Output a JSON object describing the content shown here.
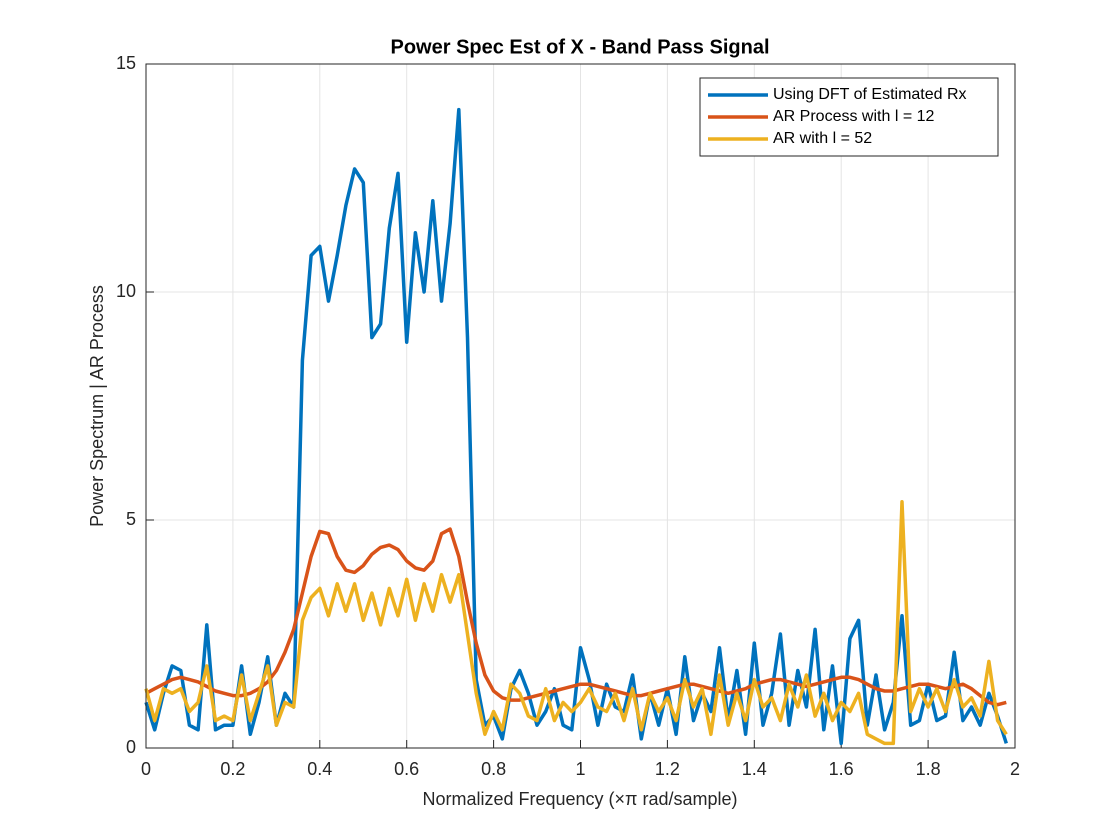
{
  "chart_data": {
    "type": "line",
    "title": "Power Spec Est of X -  Band Pass Signal",
    "x_label": "Normalized Frequency (×π rad/sample)",
    "y_label": "Power Spectrum | AR Process",
    "x": [
      0,
      0.02,
      0.04,
      0.06,
      0.08,
      0.1,
      0.12,
      0.14,
      0.16,
      0.18,
      0.2,
      0.22,
      0.24,
      0.26,
      0.28,
      0.3,
      0.32,
      0.34,
      0.36,
      0.38,
      0.4,
      0.42,
      0.44,
      0.46,
      0.48,
      0.5,
      0.52,
      0.54,
      0.56,
      0.58,
      0.6,
      0.62,
      0.64,
      0.66,
      0.68,
      0.7,
      0.72,
      0.74,
      0.76,
      0.78,
      0.8,
      0.82,
      0.84,
      0.86,
      0.88,
      0.9,
      0.92,
      0.94,
      0.96,
      0.98,
      1.0,
      1.02,
      1.04,
      1.06,
      1.08,
      1.1,
      1.12,
      1.14,
      1.16,
      1.18,
      1.2,
      1.22,
      1.24,
      1.26,
      1.28,
      1.3,
      1.32,
      1.34,
      1.36,
      1.38,
      1.4,
      1.42,
      1.44,
      1.46,
      1.48,
      1.5,
      1.52,
      1.54,
      1.56,
      1.58,
      1.6,
      1.62,
      1.64,
      1.66,
      1.68,
      1.7,
      1.72,
      1.74,
      1.76,
      1.78,
      1.8,
      1.82,
      1.84,
      1.86,
      1.88,
      1.9,
      1.92,
      1.94,
      1.96,
      1.98
    ],
    "series": [
      {
        "name": "Using DFT of Estimated Rx",
        "color": "#0072BD",
        "values": [
          1.0,
          0.4,
          1.2,
          1.8,
          1.7,
          0.5,
          0.4,
          2.7,
          0.4,
          0.5,
          0.5,
          1.8,
          0.3,
          1.0,
          2.0,
          0.5,
          1.2,
          0.9,
          8.5,
          10.8,
          11.0,
          9.8,
          10.8,
          11.9,
          12.7,
          12.4,
          9.0,
          9.3,
          11.4,
          12.6,
          8.9,
          11.3,
          10.0,
          12.0,
          9.8,
          11.5,
          14.0,
          9.0,
          1.5,
          0.5,
          0.7,
          0.2,
          1.3,
          1.7,
          1.2,
          0.5,
          0.8,
          1.3,
          0.5,
          0.4,
          2.2,
          1.5,
          0.5,
          1.4,
          0.9,
          0.8,
          1.6,
          0.2,
          1.2,
          0.5,
          1.3,
          0.3,
          2.0,
          0.6,
          1.2,
          0.8,
          2.2,
          0.6,
          1.7,
          0.3,
          2.3,
          0.5,
          1.2,
          2.5,
          0.5,
          1.7,
          0.9,
          2.6,
          0.4,
          1.8,
          0.1,
          2.4,
          2.8,
          0.5,
          1.6,
          0.4,
          1.0,
          2.9,
          0.5,
          0.6,
          1.4,
          0.6,
          0.7,
          2.1,
          0.6,
          0.9,
          0.5,
          1.2,
          0.7,
          0.1
        ]
      },
      {
        "name": "AR Process with l = 12",
        "color": "#D95319",
        "values": [
          1.2,
          1.3,
          1.4,
          1.5,
          1.55,
          1.5,
          1.45,
          1.35,
          1.25,
          1.2,
          1.15,
          1.15,
          1.2,
          1.3,
          1.45,
          1.7,
          2.1,
          2.6,
          3.4,
          4.2,
          4.75,
          4.7,
          4.2,
          3.9,
          3.85,
          4.0,
          4.25,
          4.4,
          4.45,
          4.35,
          4.1,
          3.95,
          3.9,
          4.1,
          4.7,
          4.8,
          4.2,
          3.2,
          2.3,
          1.6,
          1.25,
          1.1,
          1.05,
          1.05,
          1.1,
          1.15,
          1.2,
          1.25,
          1.3,
          1.35,
          1.4,
          1.4,
          1.35,
          1.3,
          1.25,
          1.2,
          1.15,
          1.15,
          1.2,
          1.25,
          1.3,
          1.35,
          1.4,
          1.4,
          1.35,
          1.3,
          1.25,
          1.2,
          1.25,
          1.3,
          1.4,
          1.45,
          1.5,
          1.5,
          1.45,
          1.4,
          1.35,
          1.4,
          1.45,
          1.5,
          1.55,
          1.55,
          1.5,
          1.4,
          1.3,
          1.25,
          1.25,
          1.3,
          1.35,
          1.4,
          1.4,
          1.35,
          1.3,
          1.35,
          1.4,
          1.3,
          1.15,
          1.0,
          0.95,
          1.0
        ]
      },
      {
        "name": "AR with l = 52",
        "color": "#EDB120",
        "values": [
          1.3,
          0.6,
          1.3,
          1.2,
          1.3,
          0.8,
          1.0,
          1.8,
          0.6,
          0.7,
          0.6,
          1.6,
          0.6,
          1.2,
          1.8,
          0.5,
          1.0,
          0.9,
          2.8,
          3.3,
          3.5,
          2.9,
          3.6,
          3.0,
          3.6,
          2.8,
          3.4,
          2.7,
          3.5,
          2.9,
          3.7,
          2.8,
          3.6,
          3.0,
          3.8,
          3.2,
          3.8,
          2.5,
          1.2,
          0.3,
          0.8,
          0.4,
          1.4,
          1.2,
          0.7,
          0.6,
          1.3,
          0.6,
          1.0,
          0.8,
          1.0,
          1.3,
          0.9,
          0.8,
          1.2,
          0.6,
          1.3,
          0.4,
          1.2,
          0.8,
          1.1,
          0.6,
          1.5,
          0.9,
          1.3,
          0.3,
          1.6,
          0.5,
          1.2,
          0.6,
          1.5,
          0.9,
          1.1,
          0.6,
          1.4,
          0.9,
          1.6,
          0.7,
          1.2,
          0.6,
          1.0,
          0.8,
          1.2,
          0.3,
          0.2,
          0.1,
          0.1,
          5.4,
          0.8,
          1.3,
          0.9,
          1.3,
          0.8,
          1.5,
          0.9,
          1.1,
          0.7,
          1.9,
          0.6,
          0.3
        ]
      }
    ],
    "xlim": [
      0,
      2
    ],
    "xticks": [
      0,
      0.2,
      0.4,
      0.6,
      0.8,
      1,
      1.2,
      1.4,
      1.6,
      1.8,
      2
    ],
    "ylim": [
      0,
      15
    ],
    "yticks": [
      0,
      5,
      10,
      15
    ],
    "grid": true,
    "legend_position": "northeast"
  }
}
